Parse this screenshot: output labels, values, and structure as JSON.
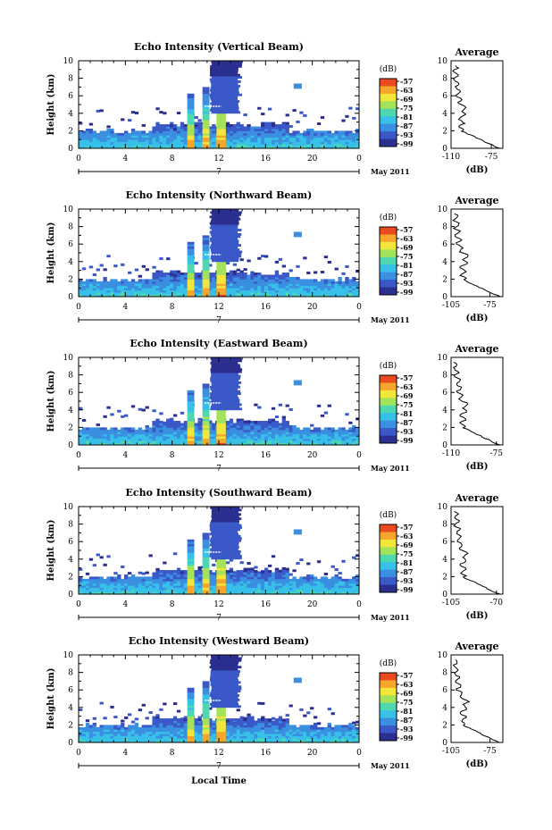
{
  "chart_data": [
    {
      "type": "heatmap",
      "title": "Echo Intensity (Vertical Beam)",
      "ylabel": "Height (km)",
      "xticks": [
        "0",
        "4",
        "8",
        "12",
        "16",
        "20",
        "0"
      ],
      "yticks": [
        "0",
        "2",
        "4",
        "6",
        "8",
        "10"
      ],
      "date_marker": "7",
      "date_label": "May 2011",
      "colorbar": {
        "unit": "(dB)",
        "levels": [
          "-57",
          "-63",
          "-69",
          "-75",
          "-81",
          "-87",
          "-93",
          "-99"
        ]
      },
      "average": {
        "title": "Average",
        "xlabel": "(dB)",
        "xticks": [
          "-110",
          "-75"
        ],
        "xlim": [
          -110,
          -65
        ]
      }
    },
    {
      "type": "heatmap",
      "title": "Echo Intensity (Northward Beam)",
      "ylabel": "Height (km)",
      "xticks": [
        "0",
        "4",
        "8",
        "12",
        "16",
        "20",
        "0"
      ],
      "yticks": [
        "0",
        "2",
        "4",
        "6",
        "8",
        "10"
      ],
      "date_marker": "7",
      "date_label": "May 2011",
      "colorbar": {
        "unit": "(dB)",
        "levels": [
          "-57",
          "-63",
          "-69",
          "-75",
          "-81",
          "-87",
          "-93",
          "-99"
        ]
      },
      "average": {
        "title": "Average",
        "xlabel": "(dB)",
        "xticks": [
          "-105",
          "-75"
        ],
        "xlim": [
          -105,
          -65
        ]
      }
    },
    {
      "type": "heatmap",
      "title": "Echo Intensity (Eastward Beam)",
      "ylabel": "Height (km)",
      "xticks": [
        "0",
        "4",
        "8",
        "12",
        "16",
        "20",
        "0"
      ],
      "yticks": [
        "0",
        "2",
        "4",
        "6",
        "8",
        "10"
      ],
      "date_marker": "7",
      "date_label": "May 2011",
      "colorbar": {
        "unit": "(dB)",
        "levels": [
          "-57",
          "-63",
          "-69",
          "-75",
          "-81",
          "-87",
          "-93",
          "-99"
        ]
      },
      "average": {
        "title": "Average",
        "xlabel": "(dB)",
        "xticks": [
          "-110",
          "-75"
        ],
        "xlim": [
          -110,
          -70
        ]
      }
    },
    {
      "type": "heatmap",
      "title": "Echo Intensity (Southward Beam)",
      "ylabel": "Height (km)",
      "xticks": [
        "0",
        "4",
        "8",
        "12",
        "16",
        "20",
        "0"
      ],
      "yticks": [
        "0",
        "2",
        "4",
        "6",
        "8",
        "10"
      ],
      "date_marker": "7",
      "date_label": "May 2011",
      "colorbar": {
        "unit": "(dB)",
        "levels": [
          "-57",
          "-63",
          "-69",
          "-75",
          "-81",
          "-87",
          "-93",
          "-99"
        ]
      },
      "average": {
        "title": "Average",
        "xlabel": "(dB)",
        "xticks": [
          "-105",
          "-70"
        ],
        "xlim": [
          -105,
          -65
        ]
      }
    },
    {
      "type": "heatmap",
      "title": "Echo Intensity (Westward Beam)",
      "ylabel": "Height (km)",
      "xlabel": "Local Time",
      "xticks": [
        "0",
        "4",
        "8",
        "12",
        "16",
        "20",
        "0"
      ],
      "yticks": [
        "0",
        "2",
        "4",
        "6",
        "8",
        "10"
      ],
      "date_marker": "7",
      "date_label": "May 2011",
      "colorbar": {
        "unit": "(dB)",
        "levels": [
          "-57",
          "-63",
          "-69",
          "-75",
          "-81",
          "-87",
          "-93",
          "-99"
        ]
      },
      "average": {
        "title": "Average",
        "xlabel": "(dB)",
        "xticks": [
          "-105",
          "-75"
        ],
        "xlim": [
          -105,
          -65
        ]
      }
    }
  ]
}
